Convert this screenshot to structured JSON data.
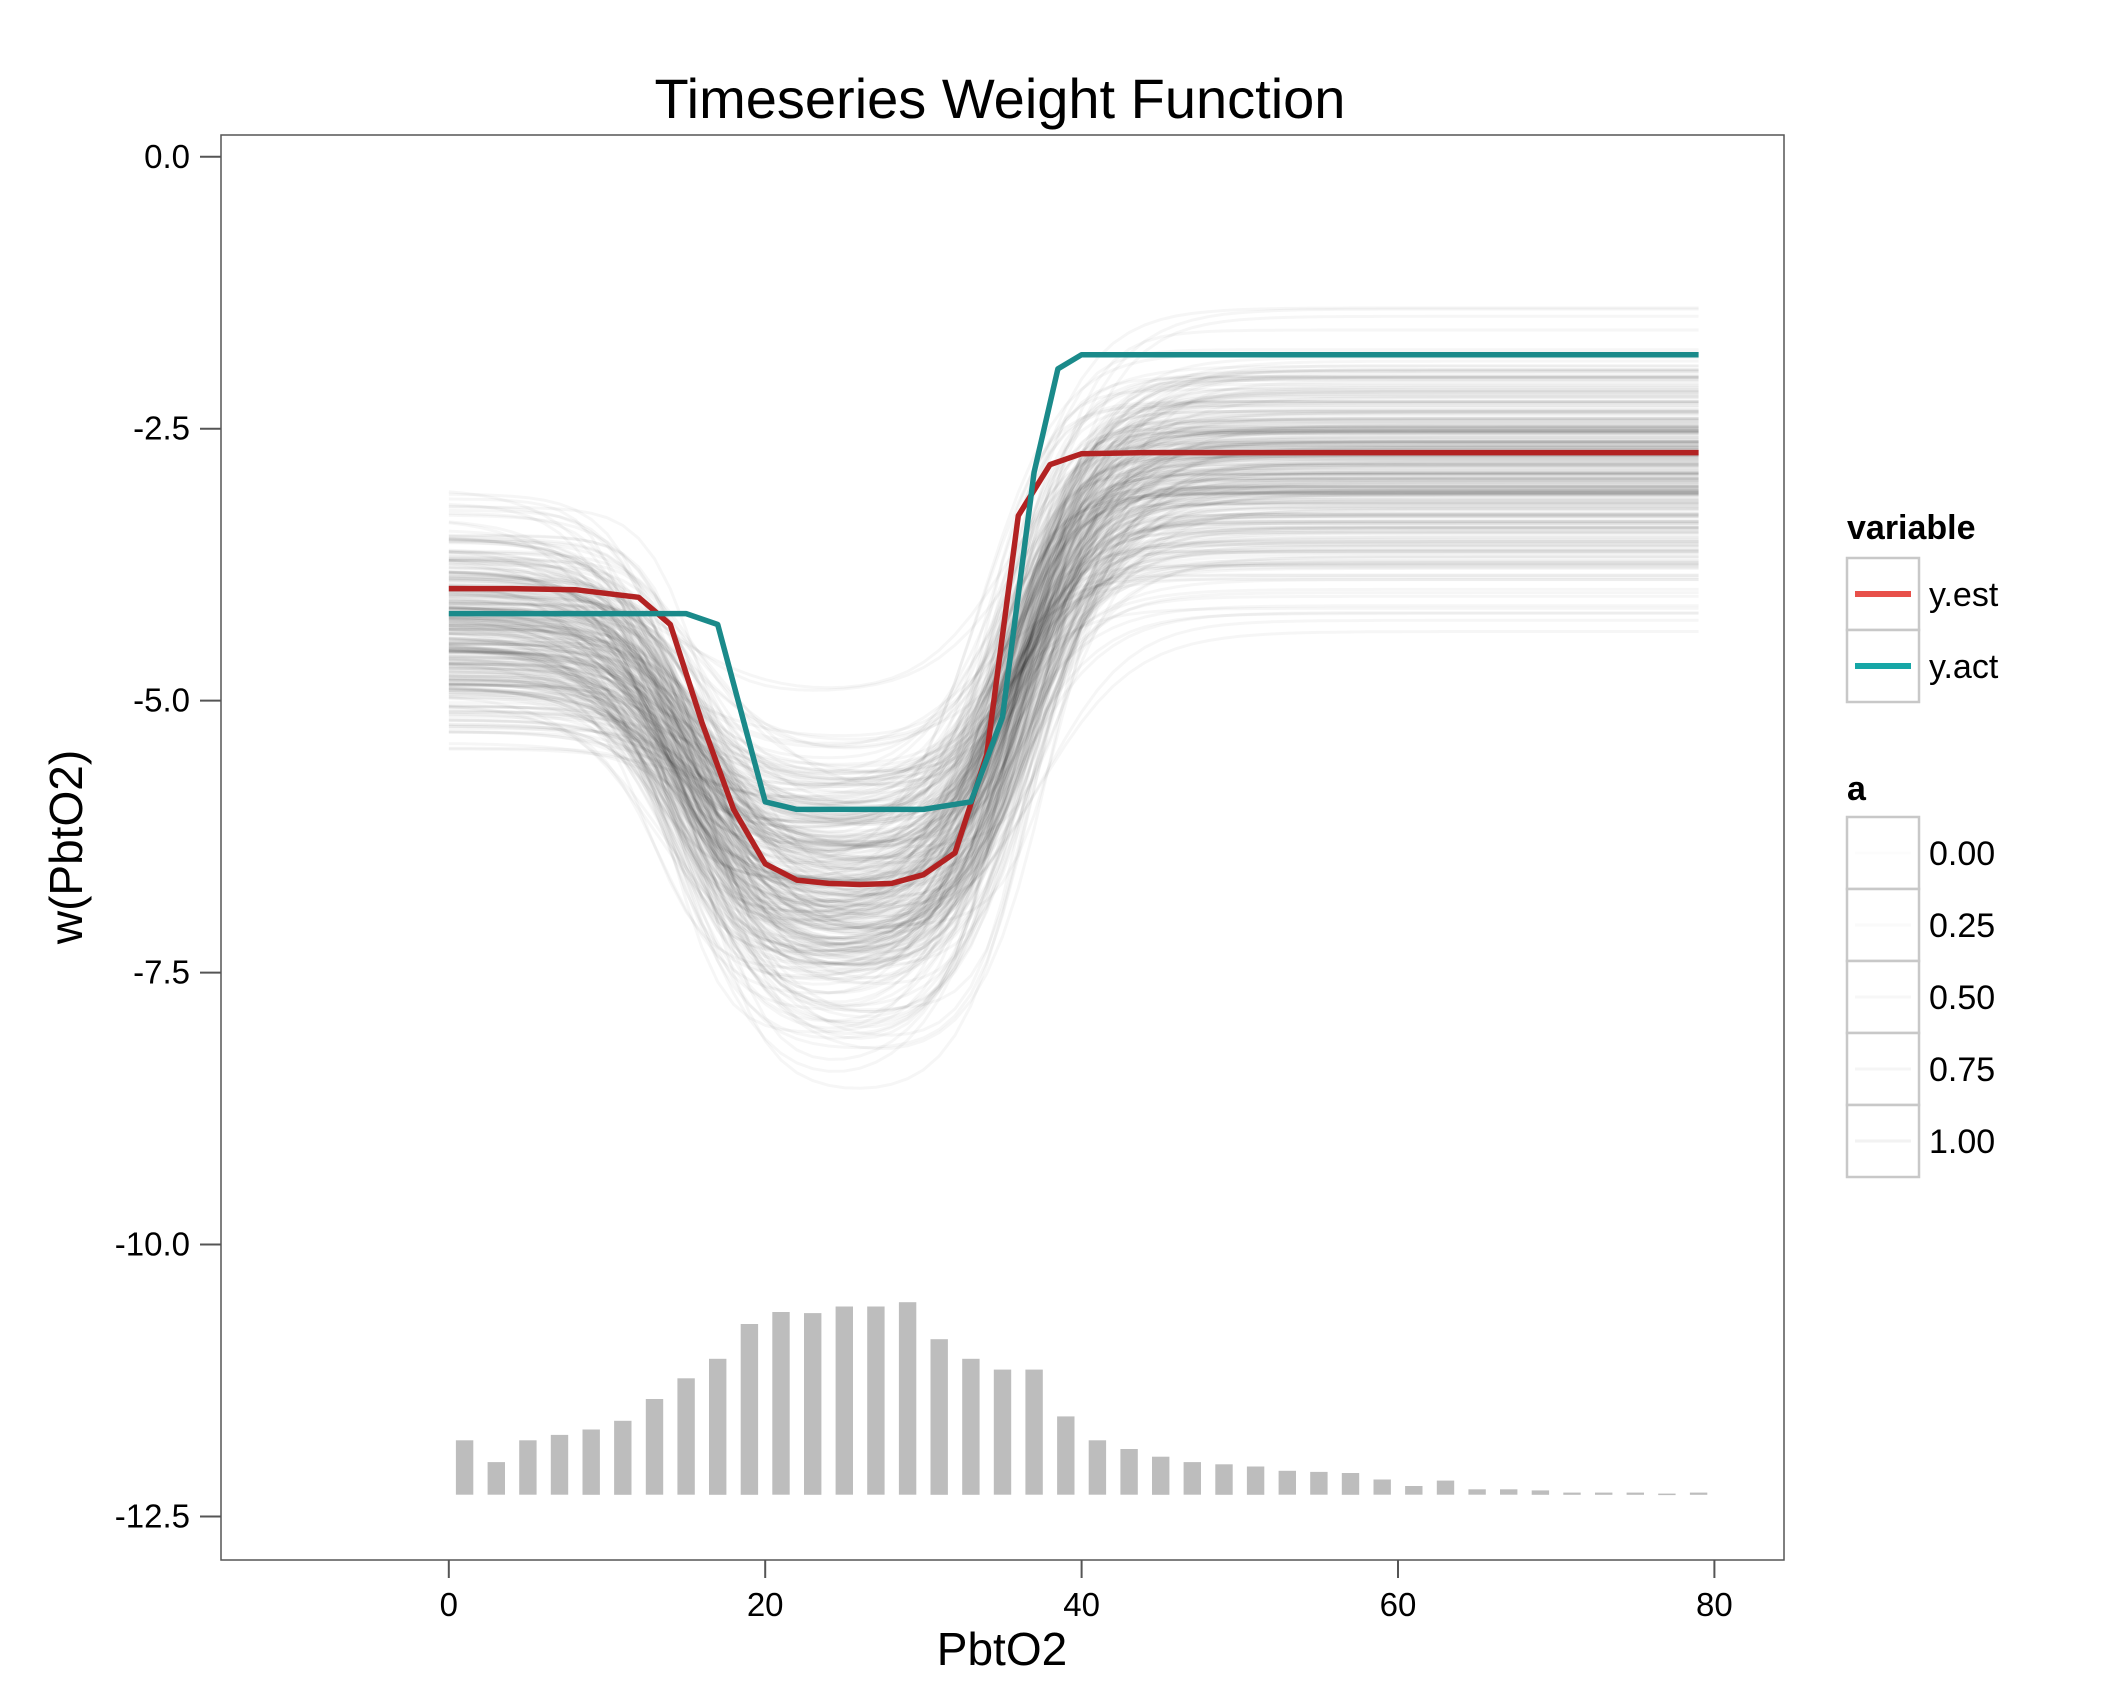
{
  "chart_data": {
    "type": "line",
    "title": "Timeseries Weight Function",
    "xlabel": "PbtO2",
    "ylabel": "w(PbtO2)",
    "xlim": [
      -14.4,
      84.4
    ],
    "ylim": [
      -12.9,
      0.2
    ],
    "x_ticks": [
      "0",
      "20",
      "40",
      "60",
      "80"
    ],
    "y_ticks": [
      "0.0",
      "-2.5",
      "-5.0",
      "-7.5",
      "-10.0",
      "-12.5"
    ],
    "x_tick_values": [
      0,
      20,
      40,
      60,
      80
    ],
    "y_tick_values": [
      0,
      -2.5,
      -5,
      -7.5,
      -10,
      -12.5
    ],
    "grid": false,
    "colors": {
      "y.est": "#b22222",
      "y.act": "#1a8a8a",
      "samples": "#000000",
      "histogram": "#bdbdbd"
    },
    "series": [
      {
        "name": "y.est",
        "x": [
          0,
          4,
          8,
          12,
          14,
          16,
          18,
          20,
          22,
          24,
          26,
          28,
          30,
          32,
          34,
          36,
          38,
          40,
          44,
          50,
          60,
          70,
          79
        ],
        "y": [
          -3.97,
          -3.97,
          -3.98,
          -4.05,
          -4.3,
          -5.2,
          -6.0,
          -6.5,
          -6.65,
          -6.68,
          -6.69,
          -6.68,
          -6.6,
          -6.4,
          -5.5,
          -3.3,
          -2.83,
          -2.73,
          -2.72,
          -2.72,
          -2.72,
          -2.72,
          -2.72
        ]
      },
      {
        "name": "y.act",
        "x": [
          0,
          5,
          10,
          15,
          17,
          20,
          22,
          24,
          26,
          28,
          30,
          33,
          35,
          37,
          38.5,
          40,
          45,
          50,
          60,
          70,
          79
        ],
        "y": [
          -4.2,
          -4.2,
          -4.2,
          -4.2,
          -4.3,
          -5.93,
          -6.0,
          -6.0,
          -6.0,
          -6.0,
          -6.0,
          -5.93,
          -5.15,
          -2.9,
          -1.95,
          -1.82,
          -1.82,
          -1.82,
          -1.82,
          -1.82,
          -1.82
        ]
      }
    ],
    "histogram": {
      "baseline": -12.3,
      "x": [
        1,
        3,
        5,
        7,
        9,
        11,
        13,
        15,
        17,
        19,
        21,
        23,
        25,
        27,
        29,
        31,
        33,
        35,
        37,
        39,
        41,
        43,
        45,
        47,
        49,
        51,
        53,
        55,
        57,
        59,
        61,
        63,
        65,
        67,
        69,
        71,
        73,
        75,
        77,
        79
      ],
      "top": [
        -11.8,
        -12.0,
        -11.8,
        -11.75,
        -11.7,
        -11.62,
        -11.42,
        -11.23,
        -11.05,
        -10.73,
        -10.62,
        -10.63,
        -10.57,
        -10.57,
        -10.53,
        -10.87,
        -11.05,
        -11.15,
        -11.15,
        -11.58,
        -11.8,
        -11.88,
        -11.95,
        -12.0,
        -12.02,
        -12.04,
        -12.08,
        -12.09,
        -12.1,
        -12.16,
        -12.22,
        -12.17,
        -12.25,
        -12.25,
        -12.26,
        -12.28,
        -12.28,
        -12.28,
        -12.29,
        -12.28
      ]
    },
    "legend": {
      "placement": "right",
      "variable_title": "variable",
      "variable_items": [
        "y.est",
        "y.act"
      ],
      "alpha_title": "a",
      "alpha_items": [
        "0.00",
        "0.25",
        "0.50",
        "0.75",
        "1.00"
      ]
    }
  }
}
